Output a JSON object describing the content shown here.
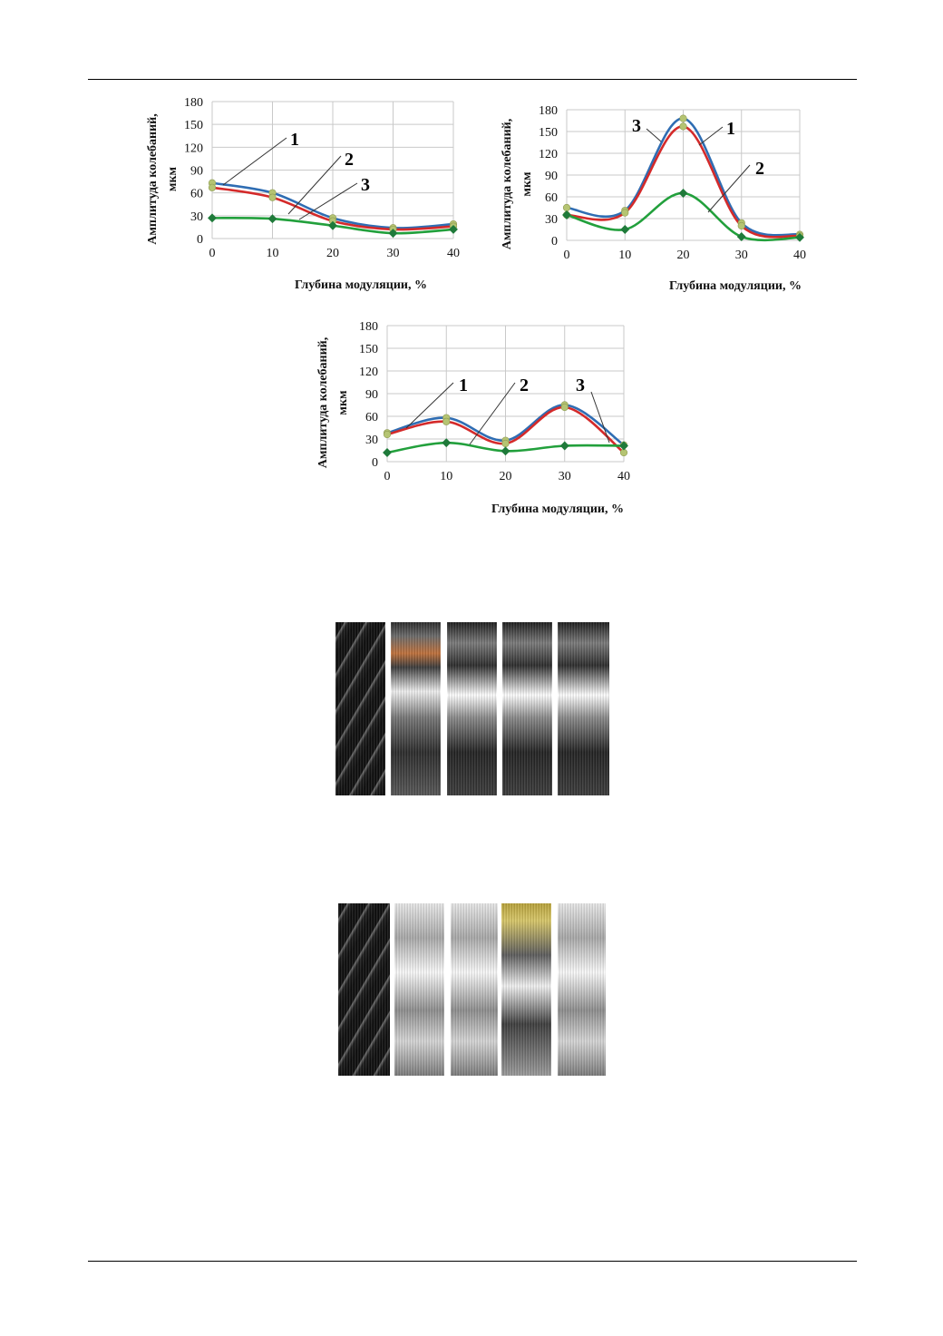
{
  "colors": {
    "series1": "#2f6db3",
    "series2": "#d42a2a",
    "series3": "#22a03c",
    "marker": "#b5c472"
  },
  "chart_data": [
    {
      "type": "line",
      "x": [
        0,
        10,
        20,
        30,
        40
      ],
      "xlabel": "Глубина модуляции, %",
      "ylabel_line1": "Амплитуда колебаний,",
      "ylabel_line2": "мкм",
      "ylim": [
        0,
        180
      ],
      "xlim": [
        0,
        40
      ],
      "grid": true,
      "yticks": [
        "0",
        "30",
        "60",
        "90",
        "120",
        "150",
        "180"
      ],
      "xticks": [
        "0",
        "10",
        "20",
        "30",
        "40"
      ],
      "callout_labels": [
        "1",
        "2",
        "3"
      ],
      "series": [
        {
          "values": [
            73,
            60,
            27,
            14,
            19
          ]
        },
        {
          "values": [
            67,
            54,
            23,
            12,
            16
          ]
        },
        {
          "values": [
            27,
            26,
            17,
            7,
            12
          ]
        }
      ]
    },
    {
      "type": "line",
      "x": [
        0,
        10,
        20,
        30,
        40
      ],
      "xlabel": "Глубина модуляции, %",
      "ylabel_line1": "Амплитуда колебаний,",
      "ylabel_line2": "мкм",
      "ylim": [
        0,
        180
      ],
      "xlim": [
        0,
        40
      ],
      "grid": true,
      "yticks": [
        "0",
        "30",
        "60",
        "90",
        "120",
        "150",
        "180"
      ],
      "xticks": [
        "0",
        "10",
        "20",
        "30",
        "40"
      ],
      "callout_labels": [
        "3",
        "1",
        "2"
      ],
      "series": [
        {
          "values": [
            45,
            41,
            168,
            24,
            8
          ]
        },
        {
          "values": [
            35,
            38,
            157,
            20,
            6
          ]
        },
        {
          "values": [
            35,
            15,
            65,
            5,
            4
          ]
        }
      ]
    },
    {
      "type": "line",
      "x": [
        0,
        10,
        20,
        30,
        40
      ],
      "xlabel": "Глубина модуляции, %",
      "ylabel_line1": "Амплитуда колебаний,",
      "ylabel_line2": "мкм",
      "ylim": [
        0,
        180
      ],
      "xlim": [
        0,
        40
      ],
      "grid": true,
      "yticks": [
        "0",
        "30",
        "60",
        "90",
        "120",
        "150",
        "180"
      ],
      "xticks": [
        "0",
        "10",
        "20",
        "30",
        "40"
      ],
      "callout_labels": [
        "1",
        "2",
        "3"
      ],
      "series": [
        {
          "values": [
            38,
            58,
            28,
            75,
            22
          ]
        },
        {
          "values": [
            36,
            53,
            24,
            72,
            12
          ]
        },
        {
          "values": [
            12,
            25,
            14,
            21,
            21
          ]
        }
      ]
    }
  ],
  "photo_rows": [
    {
      "strips": [
        {
          "tone": "dark-pattern"
        },
        {
          "tone": "copper"
        },
        {
          "tone": "silver"
        },
        {
          "tone": "silver"
        },
        {
          "tone": "silver"
        }
      ]
    },
    {
      "strips": [
        {
          "tone": "dark-pattern"
        },
        {
          "tone": "light"
        },
        {
          "tone": "light"
        },
        {
          "tone": "gold"
        },
        {
          "tone": "light"
        }
      ]
    }
  ]
}
